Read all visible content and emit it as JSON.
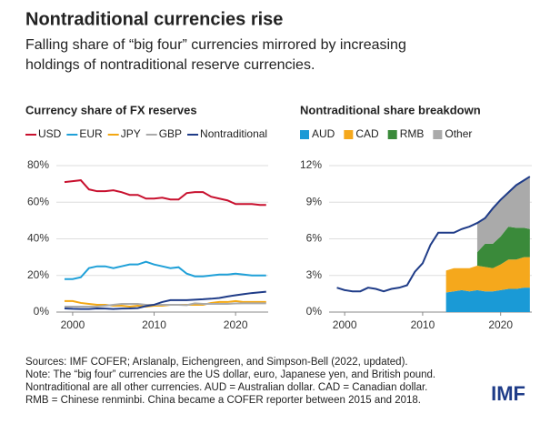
{
  "title": "Nontraditional currencies rise",
  "subtitle": [
    "Falling share of “big four” currencies mirrored by increasing",
    "holdings of nontraditional reserve currencies."
  ],
  "notes": [
    "Sources: IMF COFER; Arslanalp, Eichengreen, and Simpson-Bell (2022, updated).",
    "Note: The “big four” currencies are the US dollar, euro, Japanese yen, and British pound.",
    "Nontraditional are all other currencies. AUD = Australian dollar. CAD = Canadian dollar.",
    "RMB = Chinese renminbi. China became a COFER reporter between 2015 and 2018."
  ],
  "logo": "IMF",
  "chart_data": [
    {
      "type": "line",
      "title": "Currency share of FX reserves",
      "x": [
        1999,
        2000,
        2001,
        2002,
        2003,
        2004,
        2005,
        2006,
        2007,
        2008,
        2009,
        2010,
        2011,
        2012,
        2013,
        2014,
        2015,
        2016,
        2017,
        2018,
        2019,
        2020,
        2021,
        2022,
        2023,
        2023.75
      ],
      "series": [
        {
          "name": "USD",
          "color": "#c8102e",
          "values": [
            71,
            71.5,
            72,
            67,
            66,
            66,
            66.5,
            65.5,
            64,
            64,
            62,
            62,
            62.5,
            61.5,
            61.5,
            65,
            65.5,
            65.5,
            63,
            62,
            61,
            59,
            59,
            59,
            58.5,
            58.5
          ]
        },
        {
          "name": "EUR",
          "color": "#1fa0d8",
          "values": [
            18,
            18,
            19,
            24,
            25,
            25,
            24,
            25,
            26,
            26,
            27.5,
            26,
            25,
            24,
            24.5,
            21,
            19.5,
            19.5,
            20,
            20.5,
            20.5,
            21,
            20.5,
            20,
            20,
            20
          ]
        },
        {
          "name": "JPY",
          "color": "#f3a712",
          "values": [
            6,
            6,
            5,
            4.5,
            4,
            4,
            3.5,
            3.5,
            3,
            3.5,
            3,
            3.5,
            3.5,
            4,
            4,
            4,
            4,
            4,
            5,
            5.5,
            5.5,
            6,
            5.5,
            5.5,
            5.5,
            5.5
          ]
        },
        {
          "name": "GBP",
          "color": "#aaaaaa",
          "values": [
            3,
            3,
            3,
            3,
            3,
            3.5,
            4,
            4.5,
            4.5,
            4.5,
            4,
            4,
            4,
            4,
            4,
            3.8,
            4.8,
            4.5,
            4.5,
            4.5,
            4.5,
            4.7,
            4.8,
            4.8,
            4.8,
            4.8
          ]
        },
        {
          "name": "Nontraditional",
          "color": "#1f3c88",
          "values": [
            2,
            1.8,
            1.7,
            1.7,
            2,
            1.9,
            1.7,
            1.9,
            2,
            2.2,
            3.3,
            4,
            5.5,
            6.5,
            6.5,
            6.5,
            6.8,
            7,
            7.3,
            7.7,
            8.5,
            9.2,
            9.8,
            10.4,
            10.8,
            11.1
          ]
        }
      ],
      "xlim": [
        1998,
        2024
      ],
      "xticks": [
        2000,
        2010,
        2020
      ],
      "ylim": [
        0,
        80
      ],
      "yticks": [
        {
          "value": 0,
          "label": "0%"
        },
        {
          "value": 20,
          "label": "20%"
        },
        {
          "value": 40,
          "label": "40%"
        },
        {
          "value": 60,
          "label": "60%"
        },
        {
          "value": 80,
          "label": "80%"
        }
      ],
      "grid": true,
      "legend": "top"
    },
    {
      "type": "stacked_area",
      "title": "Nontraditional share breakdown",
      "x": [
        1999,
        2000,
        2001,
        2002,
        2003,
        2004,
        2005,
        2006,
        2007,
        2008,
        2009,
        2010,
        2011,
        2012,
        2013,
        2014,
        2015,
        2016,
        2017,
        2018,
        2019,
        2020,
        2021,
        2022,
        2023,
        2023.75
      ],
      "series": [
        {
          "name": "AUD",
          "color": "#1a9ad6",
          "values": [
            null,
            null,
            null,
            null,
            null,
            null,
            null,
            null,
            null,
            null,
            null,
            null,
            null,
            null,
            1.6,
            1.7,
            1.8,
            1.7,
            1.8,
            1.7,
            1.7,
            1.8,
            1.9,
            1.9,
            2.0,
            2.0
          ]
        },
        {
          "name": "CAD",
          "color": "#f5a81c",
          "values": [
            null,
            null,
            null,
            null,
            null,
            null,
            null,
            null,
            null,
            null,
            null,
            null,
            null,
            null,
            1.8,
            1.9,
            1.8,
            1.9,
            2.0,
            2.0,
            1.9,
            2.1,
            2.4,
            2.4,
            2.5,
            2.5
          ]
        },
        {
          "name": "RMB",
          "color": "#3a8a3a",
          "values": [
            null,
            null,
            null,
            null,
            null,
            null,
            null,
            null,
            null,
            null,
            null,
            null,
            null,
            null,
            null,
            null,
            null,
            null,
            1.1,
            1.9,
            2.0,
            2.3,
            2.7,
            2.6,
            2.4,
            2.3
          ]
        },
        {
          "name": "Other",
          "color": "#aaaaaa",
          "values": [
            null,
            null,
            null,
            null,
            null,
            null,
            null,
            null,
            null,
            null,
            null,
            null,
            null,
            null,
            null,
            null,
            null,
            null,
            2.4,
            2.1,
            2.9,
            3.0,
            2.8,
            3.5,
            3.9,
            4.3
          ]
        }
      ],
      "line": {
        "color": "#1f3c88",
        "values": [
          2,
          1.8,
          1.7,
          1.7,
          2,
          1.9,
          1.7,
          1.9,
          2,
          2.2,
          3.3,
          4,
          5.5,
          6.5,
          6.5,
          6.5,
          6.8,
          7,
          7.3,
          7.7,
          8.5,
          9.2,
          9.8,
          10.4,
          10.8,
          11.1
        ]
      },
      "xlim": [
        1998,
        2024
      ],
      "xticks": [
        2000,
        2010,
        2020
      ],
      "ylim": [
        0,
        12
      ],
      "yticks": [
        {
          "value": 0,
          "label": "0%"
        },
        {
          "value": 3,
          "label": "3%"
        },
        {
          "value": 6,
          "label": "6%"
        },
        {
          "value": 9,
          "label": "9%"
        },
        {
          "value": 12,
          "label": "12%"
        }
      ],
      "grid": true,
      "legend": "top"
    }
  ]
}
